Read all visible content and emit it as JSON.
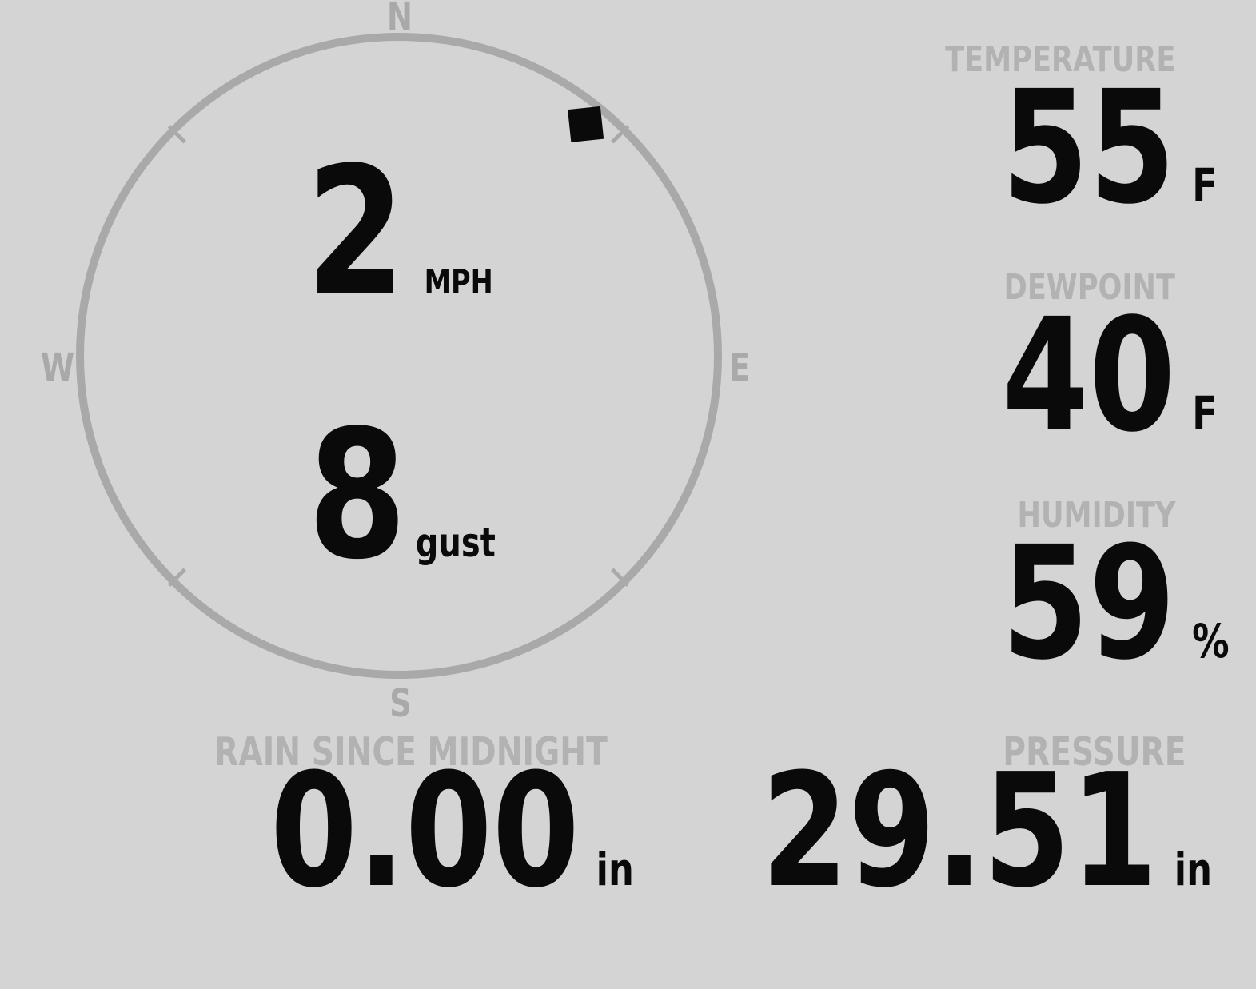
{
  "colors": {
    "background": "#d4d4d4",
    "gauge": "#a9a9a9",
    "label": "#b2b2b2",
    "value": "#0a0a0a"
  },
  "wind": {
    "speed": "2",
    "speed_unit": "MPH",
    "gust": "8",
    "gust_label": "gust",
    "direction_degrees": 39,
    "compass": {
      "north": "N",
      "east": "E",
      "south": "S",
      "west": "W"
    }
  },
  "stats": [
    {
      "label": "TEMPERATURE",
      "value": "55",
      "unit": "F"
    },
    {
      "label": "DEWPOINT",
      "value": "40",
      "unit": "F"
    },
    {
      "label": "HUMIDITY",
      "value": "59",
      "unit": "%"
    }
  ],
  "rain": {
    "label": "RAIN SINCE MIDNIGHT",
    "value": "0.00",
    "unit": "in"
  },
  "pressure": {
    "label": "PRESSURE",
    "value": "29.51",
    "unit": "in"
  }
}
